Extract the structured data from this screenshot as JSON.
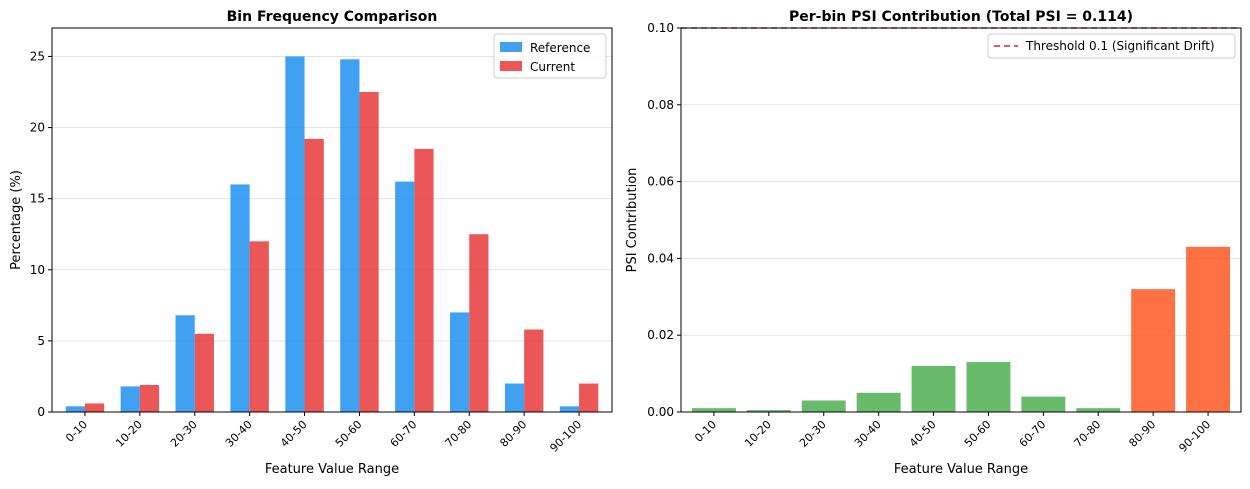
{
  "chart_data": [
    {
      "type": "bar",
      "title": "Bin Frequency Comparison",
      "xlabel": "Feature Value Range",
      "ylabel": "Percentage (%)",
      "categories": [
        "0-10",
        "10-20",
        "20-30",
        "30-40",
        "40-50",
        "50-60",
        "60-70",
        "70-80",
        "80-90",
        "90-100"
      ],
      "series": [
        {
          "name": "Reference",
          "color": "#1f8ff0",
          "values": [
            0.4,
            1.8,
            6.8,
            16.0,
            25.0,
            24.8,
            16.2,
            7.0,
            2.0,
            0.4
          ]
        },
        {
          "name": "Current",
          "color": "#e83a3a",
          "values": [
            0.6,
            1.9,
            5.5,
            12.0,
            19.2,
            22.5,
            18.5,
            12.5,
            5.8,
            2.0
          ]
        }
      ],
      "ylim": [
        0,
        27
      ],
      "yticks": [
        0,
        5,
        10,
        15,
        20,
        25
      ],
      "ytick_labels": [
        "0",
        "5",
        "10",
        "15",
        "20",
        "25"
      ],
      "grid": "y",
      "legend": "top-right"
    },
    {
      "type": "bar",
      "title": "Per-bin PSI Contribution (Total PSI = 0.114)",
      "xlabel": "Feature Value Range",
      "ylabel": "PSI Contribution",
      "categories": [
        "0-10",
        "10-20",
        "20-30",
        "30-40",
        "40-50",
        "50-60",
        "60-70",
        "70-80",
        "80-90",
        "90-100"
      ],
      "values": [
        0.001,
        0.0005,
        0.003,
        0.005,
        0.012,
        0.013,
        0.004,
        0.001,
        0.032,
        0.043
      ],
      "bar_colors": [
        "#4caf50",
        "#4caf50",
        "#4caf50",
        "#4caf50",
        "#4caf50",
        "#4caf50",
        "#4caf50",
        "#4caf50",
        "#ff5722",
        "#ff5722"
      ],
      "ylim": [
        0,
        0.1
      ],
      "yticks": [
        0,
        0.02,
        0.04,
        0.06,
        0.08,
        0.1
      ],
      "ytick_labels": [
        "0.00",
        "0.02",
        "0.04",
        "0.06",
        "0.08",
        "0.10"
      ],
      "threshold": {
        "value": 0.1,
        "label": "Threshold 0.1 (Significant Drift)",
        "color": "#d62728"
      },
      "grid": "y",
      "legend": "top-right"
    }
  ]
}
